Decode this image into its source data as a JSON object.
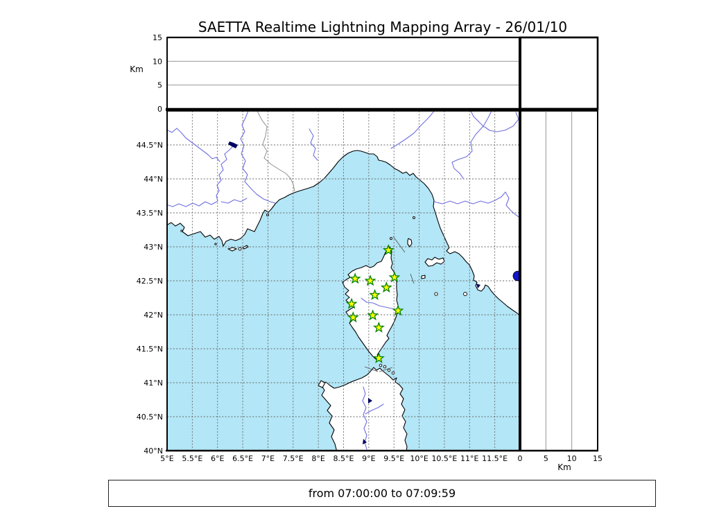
{
  "title": "SAETTA Realtime Lightning Mapping Array - 26/01/10",
  "footer": {
    "text": "from 07:00:00 to 07:09:59"
  },
  "colors": {
    "sea": "#b3e6f6",
    "land": "#ffffff",
    "coast": "#000000",
    "river": "#6e6ee0",
    "lake": "#1414cf",
    "small_lake": "#000060",
    "grid": "#666666",
    "panel_grid": "#888888",
    "border_line": "#909090",
    "sea_boundary": "#555555",
    "star_fill": "#ffff00",
    "star_stroke": "#008000",
    "frame": "#000000"
  },
  "altitude_panel_top": {
    "unit_label": "Km",
    "max_km": 15,
    "grid_km": [
      5,
      10
    ],
    "ticks": [
      {
        "label": "0",
        "km": 0
      },
      {
        "label": "5",
        "km": 5
      },
      {
        "label": "10",
        "km": 10
      },
      {
        "label": "15",
        "km": 15
      }
    ]
  },
  "altitude_panel_right": {
    "unit_label": "Km",
    "max_km": 15,
    "grid_km": [
      5,
      10
    ],
    "ticks": [
      {
        "label": "0",
        "km": 0
      },
      {
        "label": "5",
        "km": 5
      },
      {
        "label": "10",
        "km": 10
      },
      {
        "label": "15",
        "km": 15
      }
    ]
  },
  "map": {
    "lon_min": 5,
    "lon_max": 12,
    "lat_min": 40,
    "lat_max": 45,
    "grid_step_deg": 0.5,
    "lat_ticks": [
      {
        "label": "44.5°N",
        "lat": 44.5
      },
      {
        "label": "44°N",
        "lat": 44.0
      },
      {
        "label": "43.5°N",
        "lat": 43.5
      },
      {
        "label": "43°N",
        "lat": 43.0
      },
      {
        "label": "42.5°N",
        "lat": 42.5
      },
      {
        "label": "42°N",
        "lat": 42.0
      },
      {
        "label": "41.5°N",
        "lat": 41.5
      },
      {
        "label": "41°N",
        "lat": 41.0
      },
      {
        "label": "40.5°N",
        "lat": 40.5
      },
      {
        "label": "40°N",
        "lat": 40.0
      }
    ],
    "lon_ticks": [
      {
        "label": "5°E",
        "lon": 5.0
      },
      {
        "label": "5.5°E",
        "lon": 5.5
      },
      {
        "label": "6°E",
        "lon": 6.0
      },
      {
        "label": "6.5°E",
        "lon": 6.5
      },
      {
        "label": "7°E",
        "lon": 7.0
      },
      {
        "label": "7.5°E",
        "lon": 7.5
      },
      {
        "label": "8°E",
        "lon": 8.0
      },
      {
        "label": "8.5°E",
        "lon": 8.5
      },
      {
        "label": "9°E",
        "lon": 9.0
      },
      {
        "label": "9.5°E",
        "lon": 9.5
      },
      {
        "label": "10°E",
        "lon": 10.0
      },
      {
        "label": "10.5°E",
        "lon": 10.5
      },
      {
        "label": "11°E",
        "lon": 11.0
      },
      {
        "label": "11.5°E",
        "lon": 11.5
      }
    ],
    "stations": [
      {
        "lon": 9.39,
        "lat": 42.95
      },
      {
        "lon": 8.73,
        "lat": 42.53
      },
      {
        "lon": 9.03,
        "lat": 42.5
      },
      {
        "lon": 9.51,
        "lat": 42.55
      },
      {
        "lon": 9.35,
        "lat": 42.4
      },
      {
        "lon": 9.12,
        "lat": 42.29
      },
      {
        "lon": 8.66,
        "lat": 42.16
      },
      {
        "lon": 9.58,
        "lat": 42.06
      },
      {
        "lon": 8.69,
        "lat": 41.96
      },
      {
        "lon": 9.08,
        "lat": 41.99
      },
      {
        "lon": 9.2,
        "lat": 41.81
      },
      {
        "lon": 9.2,
        "lat": 41.36
      }
    ]
  }
}
